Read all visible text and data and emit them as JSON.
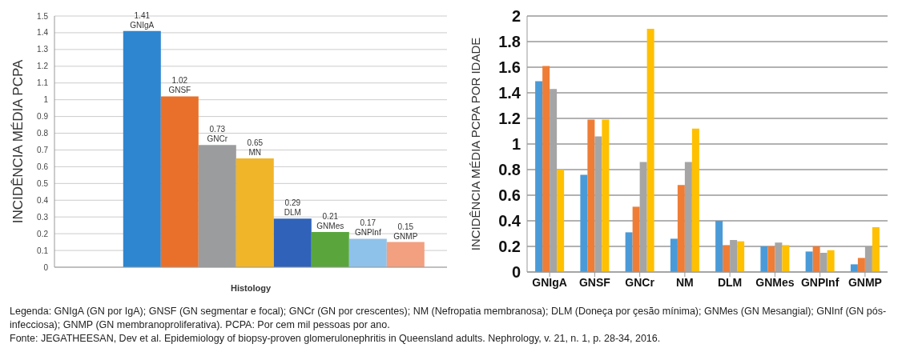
{
  "chart_data": [
    {
      "type": "bar",
      "xlabel": "Histology",
      "ylabel": "INCIDÊNCIA MÉDIA PCPA",
      "categories": [
        null
      ],
      "series": [
        {
          "name": "GNIgA",
          "color": "#2e86d0",
          "values": [
            1.41
          ]
        },
        {
          "name": "GNSF",
          "color": "#e8702a",
          "values": [
            1.02
          ]
        },
        {
          "name": "GNCr",
          "color": "#9a9c9e",
          "values": [
            0.73
          ]
        },
        {
          "name": "MN",
          "color": "#f1b52a",
          "values": [
            0.65
          ]
        },
        {
          "name": "DLM",
          "color": "#2f62b8",
          "values": [
            0.29
          ]
        },
        {
          "name": "GNMes",
          "color": "#5aa63c",
          "values": [
            0.21
          ]
        },
        {
          "name": "GNPInf",
          "color": "#8ec2ea",
          "values": [
            0.17
          ]
        },
        {
          "name": "GNMP",
          "color": "#f2a080",
          "values": [
            0.15
          ]
        }
      ],
      "ylim": [
        0,
        1.5
      ],
      "yticks": [
        0,
        0.1,
        0.2,
        0.3,
        0.4,
        0.5,
        0.6,
        0.7,
        0.8,
        0.9,
        1,
        1.1,
        1.2,
        1.3,
        1.4,
        1.5
      ],
      "grid": "y",
      "data_labels": true,
      "tick_labels": "y"
    },
    {
      "type": "bar",
      "ylabel": "INCIDÊNCIA MÉDIA PCPA POR IDADE",
      "categories": [
        "GNIgA",
        "GNSF",
        "GNCr",
        "NM",
        "DLM",
        "GNMes",
        "GNPInf",
        "GNMP"
      ],
      "series": [
        {
          "color": "#4a9ad8",
          "values": [
            1.49,
            0.76,
            0.31,
            0.26,
            0.4,
            0.2,
            0.16,
            0.06
          ]
        },
        {
          "color": "#ef7d35",
          "values": [
            1.61,
            1.19,
            0.51,
            0.68,
            0.21,
            0.2,
            0.2,
            0.11
          ]
        },
        {
          "color": "#a5a5a5",
          "values": [
            1.43,
            1.06,
            0.86,
            0.86,
            0.25,
            0.23,
            0.15,
            0.2
          ]
        },
        {
          "color": "#ffc000",
          "values": [
            0.8,
            1.19,
            1.9,
            1.12,
            0.24,
            0.21,
            0.17,
            0.35
          ]
        }
      ],
      "ylim": [
        0,
        2
      ],
      "yticks": [
        0,
        0.2,
        0.4,
        0.6,
        0.8,
        1,
        1.2,
        1.4,
        1.6,
        1.8,
        2
      ],
      "grid": "y",
      "annotations": [
        "Legenda: GNIgA (GN por IgA); GNSF (GN segmentar e focal); GNCr (GN por crescentes); NM (Nefropatia membranosa); DLM (Doneça por çesão mínima); GNMes (GN Mesangial); GNInf (GN pós-infecciosa); GNMP (GN membranoproliferativa). PCPA: Por cem mil pessoas por ano.",
        "Fonte: JEGATHEESAN, Dev et al. Epidemiology of biopsy-proven glomerulonephritis in Queensland adults. Nephrology, v. 21, n. 1, p. 28-34, 2016."
      ]
    }
  ]
}
